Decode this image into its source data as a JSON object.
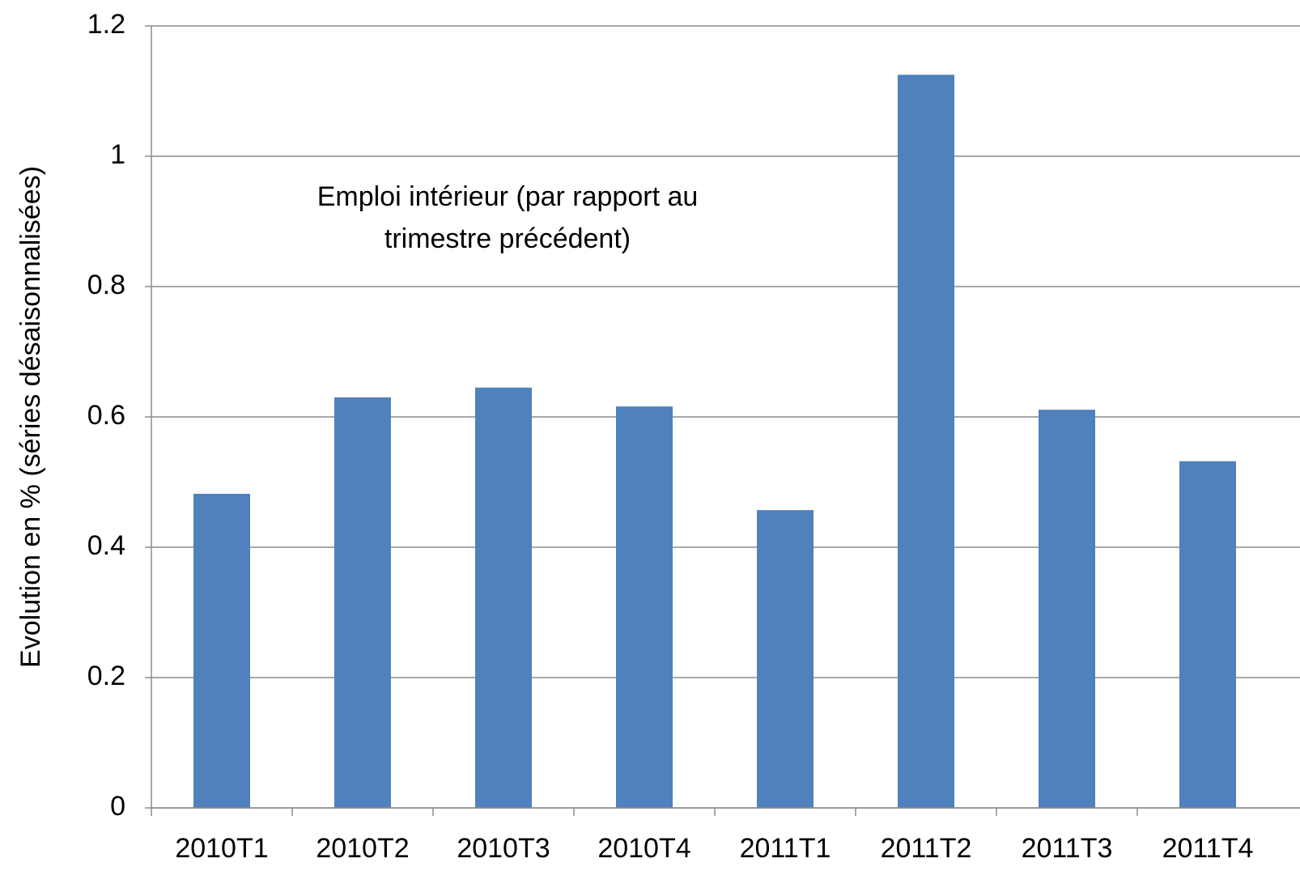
{
  "chart_data": {
    "type": "bar",
    "title_lines": [
      "Emploi intérieur (par rapport au",
      "trimestre précédent)"
    ],
    "y_label": "Evolution en % (séries désaisonnalisées)",
    "categories": [
      "2010T1",
      "2010T2",
      "2010T3",
      "2010T4",
      "2011T1",
      "2011T2",
      "2011T3",
      "2011T4"
    ],
    "values": [
      0.482,
      0.63,
      0.645,
      0.616,
      0.457,
      1.125,
      0.611,
      0.532
    ],
    "color": "#4f81bd",
    "ylim": [
      0,
      1.2
    ],
    "yticks": [
      0,
      0.2,
      0.4,
      0.6,
      0.8,
      1,
      1.2
    ],
    "grid": true
  }
}
